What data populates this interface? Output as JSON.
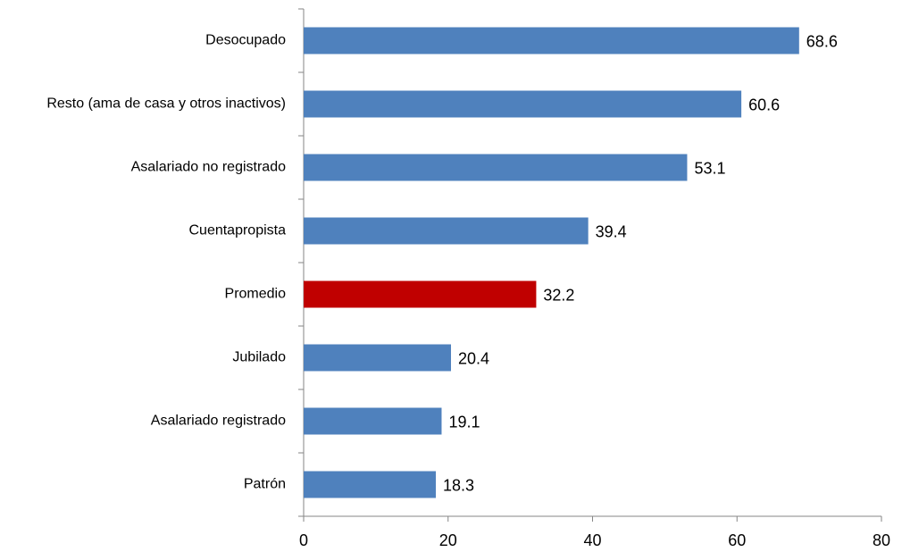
{
  "chart_data": {
    "type": "bar",
    "orientation": "horizontal",
    "categories": [
      "Desocupado",
      "Resto (ama de casa y otros inactivos)",
      "Asalariado no registrado",
      "Cuentapropista",
      "Promedio",
      "Jubilado",
      "Asalariado registrado",
      "Patrón"
    ],
    "values": [
      68.6,
      60.6,
      53.1,
      39.4,
      32.2,
      20.4,
      19.1,
      18.3
    ],
    "colors": [
      "#4f81bd",
      "#4f81bd",
      "#4f81bd",
      "#4f81bd",
      "#c00000",
      "#4f81bd",
      "#4f81bd",
      "#4f81bd"
    ],
    "xlim": [
      0,
      80
    ],
    "xticks": [
      0,
      20,
      40,
      60,
      80
    ],
    "grid": false
  }
}
